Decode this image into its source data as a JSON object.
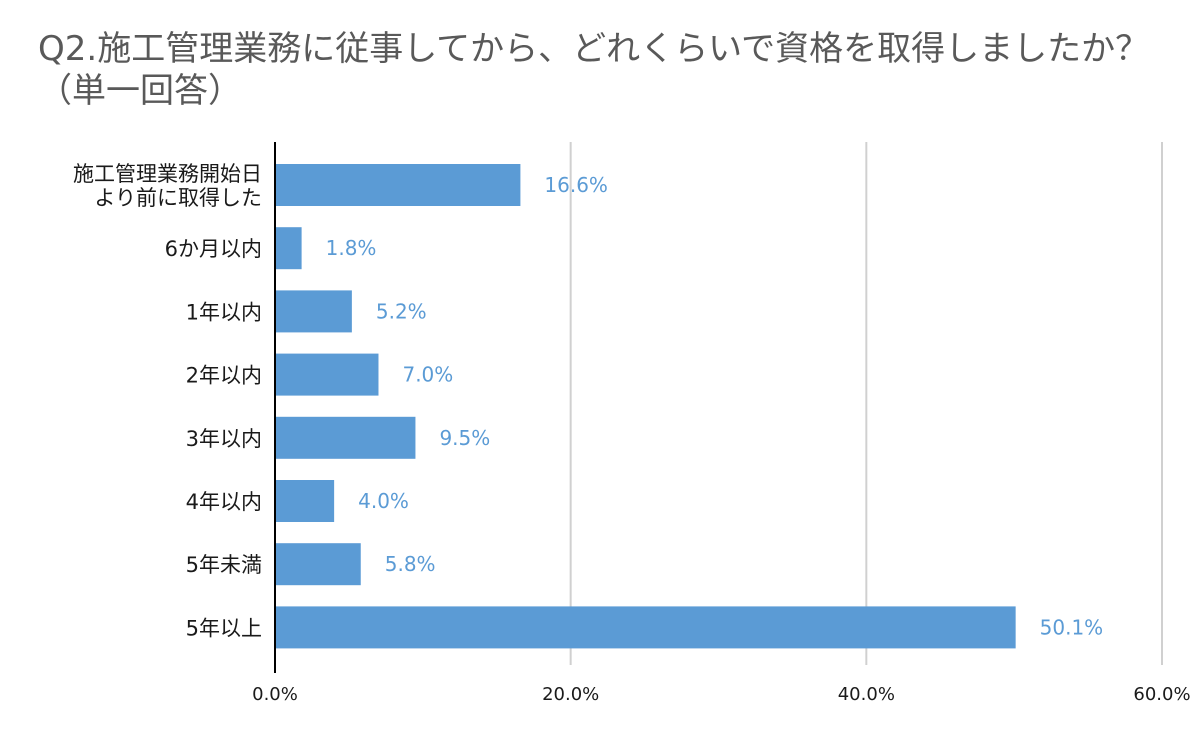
{
  "chart_data": {
    "type": "bar",
    "orientation": "horizontal",
    "title": "Q2.施工管理業務に従事してから、どれくらいで資格を取得しましたか？（単一回答）",
    "categories": [
      [
        "施工管理業務開始日",
        "より前に取得した"
      ],
      [
        "6か月以内"
      ],
      [
        "1年以内"
      ],
      [
        "2年以内"
      ],
      [
        "3年以内"
      ],
      [
        "4年以内"
      ],
      [
        "5年未満"
      ],
      [
        "5年以上"
      ]
    ],
    "values": [
      16.6,
      1.8,
      5.2,
      7.0,
      9.5,
      4.0,
      5.8,
      50.1
    ],
    "value_labels": [
      "16.6%",
      "1.8%",
      "5.2%",
      "7.0%",
      "9.5%",
      "4.0%",
      "5.8%",
      "50.1%"
    ],
    "xlim": [
      0,
      60
    ],
    "xticks": [
      0,
      20,
      40,
      60
    ],
    "xtick_labels": [
      "0.0%",
      "20.0%",
      "40.0%",
      "60.0%"
    ],
    "grid": true,
    "bar_color": "#5b9bd5",
    "label_color": "#5b9bd5",
    "grid_color": "#d0d0d0",
    "axis_color": "#000000"
  }
}
